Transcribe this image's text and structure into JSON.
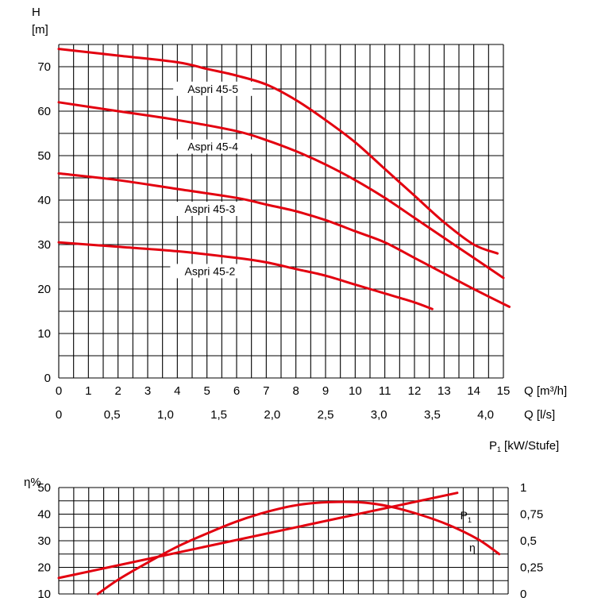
{
  "chart_data": [
    {
      "type": "line",
      "ylabel_lines": [
        "H",
        "[m]"
      ],
      "xlabel": "Q [m³/h]",
      "xlabel2": "Q [l/s]",
      "xlim": [
        0,
        15
      ],
      "ylim": [
        0,
        75
      ],
      "x_ticks": [
        "0",
        "1",
        "2",
        "3",
        "4",
        "5",
        "6",
        "7",
        "8",
        "9",
        "10",
        "11",
        "12",
        "13",
        "14",
        "15"
      ],
      "x2_ticks": [
        {
          "value": 0,
          "label": "0"
        },
        {
          "value": 0.5,
          "label": "0,5"
        },
        {
          "value": 1.0,
          "label": "1,0"
        },
        {
          "value": 1.5,
          "label": "1,5"
        },
        {
          "value": 2.0,
          "label": "2,0"
        },
        {
          "value": 2.5,
          "label": "2,5"
        },
        {
          "value": 3.0,
          "label": "3,0"
        },
        {
          "value": 3.5,
          "label": "3,5"
        },
        {
          "value": 4.0,
          "label": "4,0"
        }
      ],
      "y_ticks": [
        "0",
        "10",
        "20",
        "30",
        "40",
        "50",
        "60",
        "70"
      ],
      "grid": true,
      "series": [
        {
          "name": "Aspri 45-5",
          "x": [
            0,
            2,
            4,
            5,
            6,
            7,
            8,
            9,
            10,
            11,
            12,
            13,
            14,
            14.8
          ],
          "y": [
            74,
            72.5,
            71,
            69.5,
            68,
            66,
            62.5,
            58,
            53,
            47,
            41,
            35,
            30,
            28
          ]
        },
        {
          "name": "Aspri 45-4",
          "x": [
            0,
            2,
            4,
            6,
            7,
            8,
            9,
            10,
            11,
            12,
            13,
            14,
            15
          ],
          "y": [
            62,
            60,
            58,
            55.5,
            53.5,
            51,
            48,
            44.5,
            40.5,
            36,
            31.5,
            27,
            22.5
          ]
        },
        {
          "name": "Aspri 45-3",
          "x": [
            0,
            2,
            4,
            6,
            7,
            8,
            9,
            10,
            11,
            12,
            13,
            14,
            15.2
          ],
          "y": [
            46,
            44.5,
            42.5,
            40.5,
            39,
            37.5,
            35.5,
            33,
            30.5,
            27,
            23.5,
            20,
            16
          ]
        },
        {
          "name": "Aspri 45-2",
          "x": [
            0,
            2,
            4,
            6,
            7,
            8,
            9,
            10,
            11,
            12,
            12.6
          ],
          "y": [
            30.5,
            29.5,
            28.5,
            27,
            26,
            24.5,
            23,
            21,
            19,
            17,
            15.5
          ]
        }
      ]
    },
    {
      "type": "line",
      "ylabel": "η%",
      "y2label_main": "P",
      "y2label_sub": "1",
      "y2label_rest": "[kW/Stufe]",
      "xlim": [
        0,
        15
      ],
      "ylim": [
        10,
        50
      ],
      "y2lim": [
        0,
        1
      ],
      "y_ticks": [
        "10",
        "20",
        "30",
        "40",
        "50"
      ],
      "y2_ticks": [
        {
          "value": 0,
          "label": "0"
        },
        {
          "value": 0.25,
          "label": "0,25"
        },
        {
          "value": 0.5,
          "label": "0,5"
        },
        {
          "value": 0.75,
          "label": "0,75"
        },
        {
          "value": 1,
          "label": "1"
        }
      ],
      "grid": true,
      "series": [
        {
          "name": "η",
          "label_main": "η",
          "axis": "left",
          "x": [
            1.3,
            2,
            3,
            4,
            5,
            6,
            7,
            8,
            9,
            10,
            11,
            12,
            13,
            14,
            14.7
          ],
          "y": [
            10,
            15.5,
            22,
            28,
            33,
            37.5,
            41,
            43.5,
            44.5,
            44.5,
            43,
            40,
            36,
            30.5,
            25
          ]
        },
        {
          "name": "P1",
          "label_main": "P",
          "label_sub": "1",
          "axis": "right",
          "x": [
            0,
            13.3
          ],
          "y": [
            0.15,
            0.95
          ]
        }
      ]
    }
  ]
}
